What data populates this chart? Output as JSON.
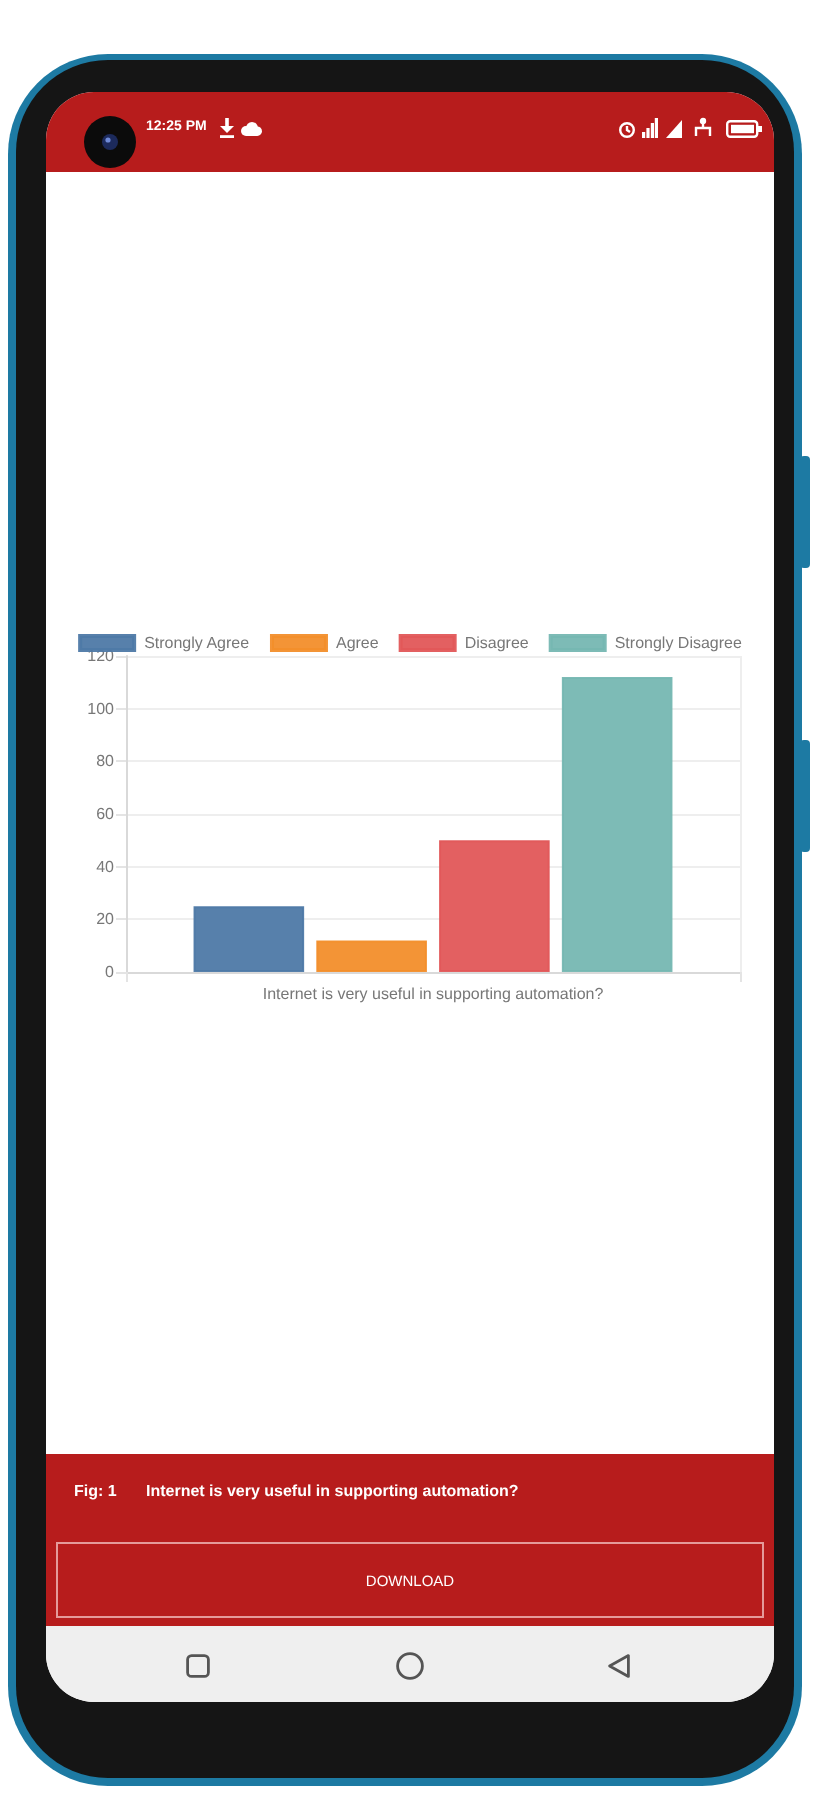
{
  "chart_data": {
    "type": "bar",
    "title": "Internet is very useful in supporting automation?",
    "categories": [
      "Internet is very useful in supporting automation?"
    ],
    "series": [
      {
        "name": "Strongly Agree",
        "color": "#4e79a7",
        "values": [
          25
        ]
      },
      {
        "name": "Agree",
        "color": "#f28e2b",
        "values": [
          12
        ]
      },
      {
        "name": "Disagree",
        "color": "#e15759",
        "values": [
          50
        ]
      },
      {
        "name": "Strongly Disagree",
        "color": "#76b7b2",
        "values": [
          112
        ]
      }
    ],
    "ylim": [
      0,
      120
    ],
    "yticks": [
      0,
      20,
      40,
      60,
      80,
      100,
      120
    ],
    "grid": true,
    "legend": "top",
    "annotations": [
      "12:25 PM",
      "Fig: 1",
      "DOWNLOAD"
    ]
  }
}
